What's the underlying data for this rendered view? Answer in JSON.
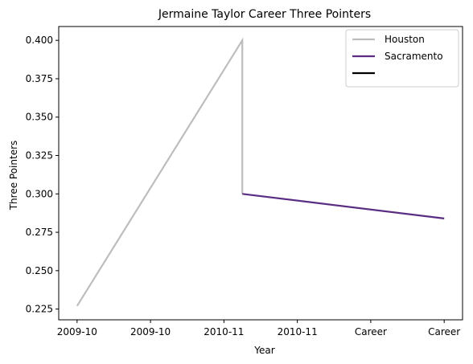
{
  "chart_data": {
    "type": "line",
    "title": "Jermaine Taylor  Career Three Pointers",
    "xlabel": "Year",
    "ylabel": "Three Pointers",
    "x_ticks": [
      "2009-10",
      "2009-10",
      "2010-11",
      "2010-11",
      "Career",
      "Career"
    ],
    "ylim": [
      0.218,
      0.409
    ],
    "y_ticks": [
      "0.225",
      "0.250",
      "0.275",
      "0.300",
      "0.325",
      "0.350",
      "0.375",
      "0.400"
    ],
    "y_tick_values": [
      0.225,
      0.25,
      0.275,
      0.3,
      0.325,
      0.35,
      0.375,
      0.4
    ],
    "grid": false,
    "legend_position": "upper-right",
    "series": [
      {
        "name": "Houston",
        "color": "#bdbdbd",
        "points": [
          [
            0,
            0.227
          ],
          [
            2.25,
            0.4
          ],
          [
            2.25,
            0.3
          ]
        ]
      },
      {
        "name": "Sacramento",
        "color": "#5a2d82",
        "points": [
          [
            2.25,
            0.3
          ],
          [
            5,
            0.284
          ]
        ]
      },
      {
        "name": "",
        "color": "#000000",
        "points": []
      }
    ]
  }
}
